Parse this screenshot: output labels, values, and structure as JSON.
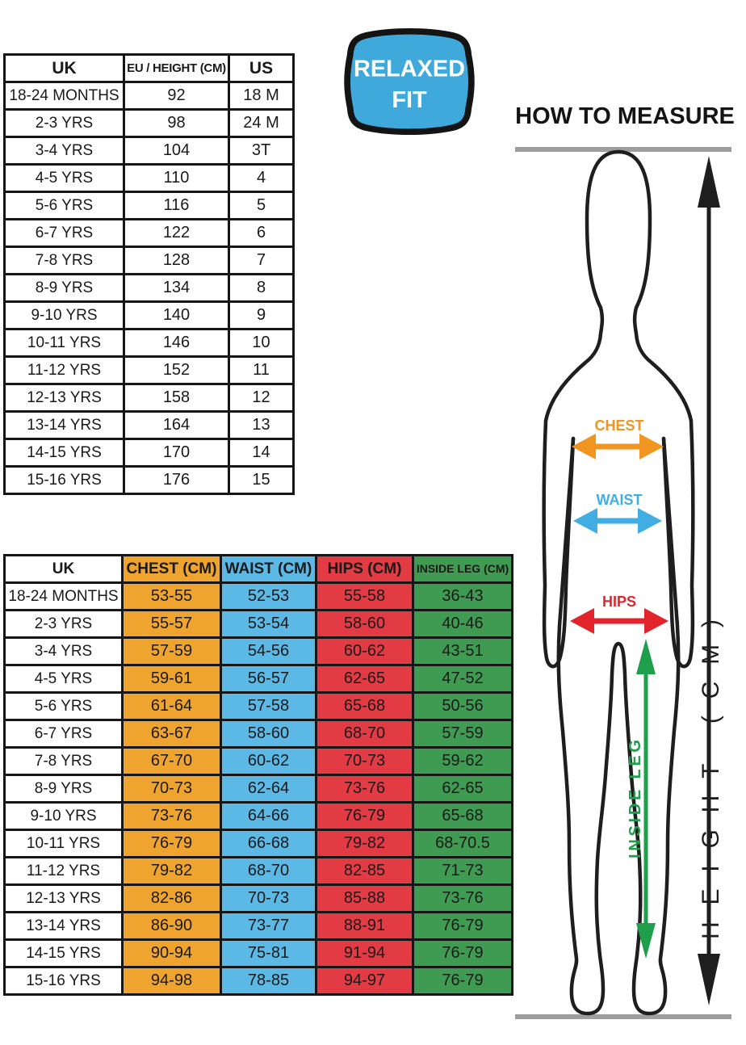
{
  "conversion_table": {
    "headers": [
      "UK",
      "EU / HEIGHT (CM)",
      "US"
    ],
    "rows": [
      [
        "18-24 MONTHS",
        "92",
        "18 M"
      ],
      [
        "2-3 YRS",
        "98",
        "24 M"
      ],
      [
        "3-4 YRS",
        "104",
        "3T"
      ],
      [
        "4-5 YRS",
        "110",
        "4"
      ],
      [
        "5-6 YRS",
        "116",
        "5"
      ],
      [
        "6-7 YRS",
        "122",
        "6"
      ],
      [
        "7-8 YRS",
        "128",
        "7"
      ],
      [
        "8-9 YRS",
        "134",
        "8"
      ],
      [
        "9-10 YRS",
        "140",
        "9"
      ],
      [
        "10-11 YRS",
        "146",
        "10"
      ],
      [
        "11-12 YRS",
        "152",
        "11"
      ],
      [
        "12-13 YRS",
        "158",
        "12"
      ],
      [
        "13-14 YRS",
        "164",
        "13"
      ],
      [
        "14-15 YRS",
        "170",
        "14"
      ],
      [
        "15-16 YRS",
        "176",
        "15"
      ]
    ]
  },
  "badge": {
    "line1": "RELAXED",
    "line2": "FIT",
    "fill": "#3FA9DC",
    "border": "#141414"
  },
  "measure": {
    "title": "HOW TO MEASURE",
    "labels": {
      "chest": "CHEST",
      "waist": "WAIST",
      "hips": "HIPS",
      "inside_leg": "INSIDE LEG",
      "height": "HEIGHT (CM)"
    },
    "colors": {
      "chest": "#F0951F",
      "waist": "#41ADE2",
      "hips": "#E2242C",
      "inside_leg": "#1F9E4B",
      "figure": "#1E1E1E",
      "rule": "#9E9E9E"
    }
  },
  "size_table": {
    "headers": [
      "UK",
      "CHEST (CM)",
      "WAIST (CM)",
      "HIPS (CM)",
      "INSIDE LEG (CM)"
    ],
    "header_colors": [
      "#FFFFFF",
      "#EFA42F",
      "#5CB8E4",
      "#E23B44",
      "#3F9B51"
    ],
    "rows": [
      [
        "18-24 MONTHS",
        "53-55",
        "52-53",
        "55-58",
        "36-43"
      ],
      [
        "2-3 YRS",
        "55-57",
        "53-54",
        "58-60",
        "40-46"
      ],
      [
        "3-4 YRS",
        "57-59",
        "54-56",
        "60-62",
        "43-51"
      ],
      [
        "4-5 YRS",
        "59-61",
        "56-57",
        "62-65",
        "47-52"
      ],
      [
        "5-6 YRS",
        "61-64",
        "57-58",
        "65-68",
        "50-56"
      ],
      [
        "6-7 YRS",
        "63-67",
        "58-60",
        "68-70",
        "57-59"
      ],
      [
        "7-8 YRS",
        "67-70",
        "60-62",
        "70-73",
        "59-62"
      ],
      [
        "8-9 YRS",
        "70-73",
        "62-64",
        "73-76",
        "62-65"
      ],
      [
        "9-10 YRS",
        "73-76",
        "64-66",
        "76-79",
        "65-68"
      ],
      [
        "10-11 YRS",
        "76-79",
        "66-68",
        "79-82",
        "68-70.5"
      ],
      [
        "11-12 YRS",
        "79-82",
        "68-70",
        "82-85",
        "71-73"
      ],
      [
        "12-13 YRS",
        "82-86",
        "70-73",
        "85-88",
        "73-76"
      ],
      [
        "13-14 YRS",
        "86-90",
        "73-77",
        "88-91",
        "76-79"
      ],
      [
        "14-15 YRS",
        "90-94",
        "75-81",
        "91-94",
        "76-79"
      ],
      [
        "15-16 YRS",
        "94-98",
        "78-85",
        "94-97",
        "76-79"
      ]
    ]
  }
}
